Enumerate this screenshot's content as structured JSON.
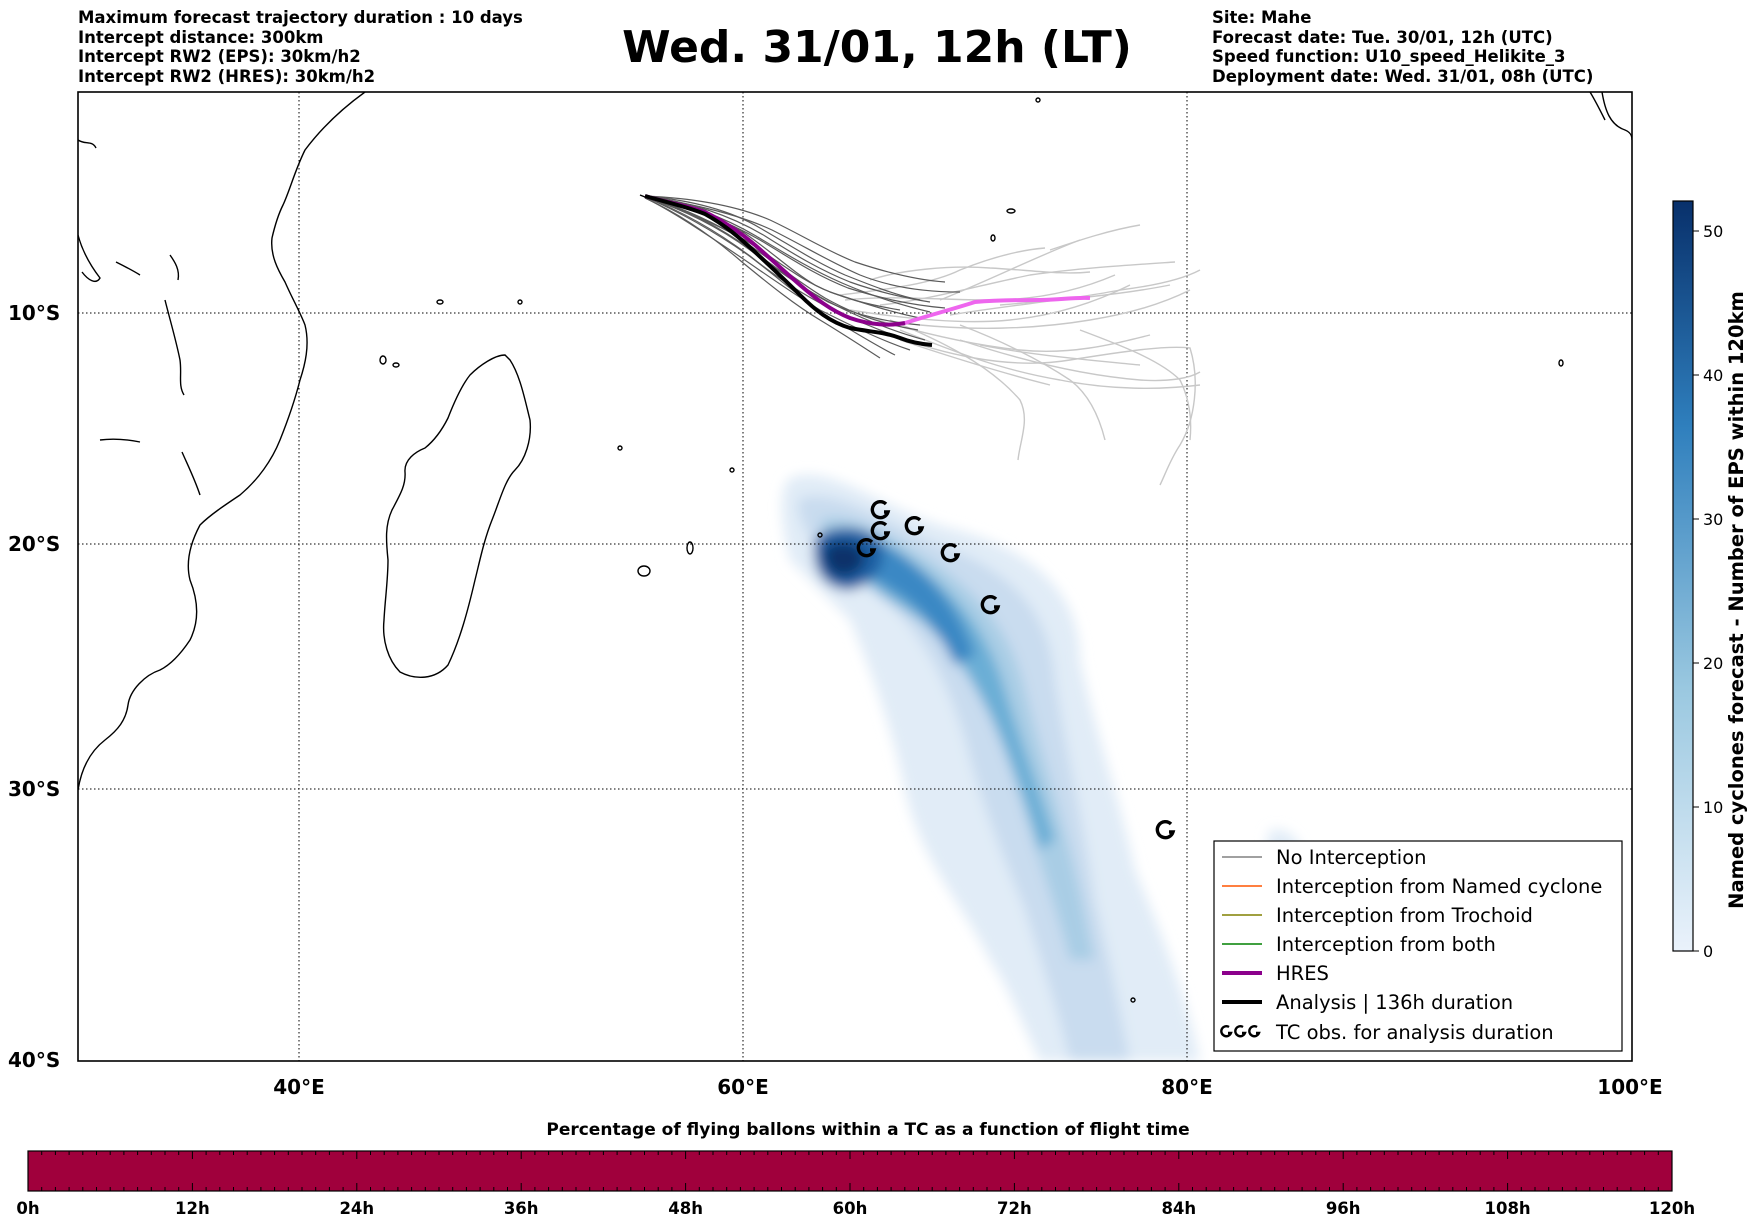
{
  "header": {
    "left_lines": [
      "Maximum forecast trajectory duration : 10 days",
      "Intercept distance: 300km",
      "Intercept RW2 (EPS):  30km/h2",
      "Intercept RW2 (HRES): 30km/h2"
    ],
    "title": "Wed. 31/01, 12h (LT)",
    "right_lines": [
      "Site: Mahe",
      "Forecast date: Tue. 30/01, 12h (UTC)",
      "Speed function: U10_speed_Helikite_3",
      "Deployment date: Wed. 31/01, 08h (UTC)"
    ]
  },
  "map": {
    "lat_labels": [
      "10°S",
      "20°S",
      "30°S",
      "40°S"
    ],
    "lon_labels": [
      "40°E",
      "60°E",
      "80°E",
      "100°E"
    ],
    "grid": true
  },
  "legend": {
    "items": [
      {
        "label": "No Interception",
        "color": "#808080"
      },
      {
        "label": "Interception from Named cyclone",
        "color": "#ff5500"
      },
      {
        "label": "Interception from Trochoid",
        "color": "#808000"
      },
      {
        "label": "Interception from both",
        "color": "#008000"
      },
      {
        "label": "HRES",
        "color": "#8b008b"
      },
      {
        "label": "Analysis | 136h duration",
        "color": "#000000"
      },
      {
        "label": "TC obs. for analysis duration",
        "color": "#000000",
        "icon": "cyclone-symbol-icon"
      }
    ]
  },
  "colorbar": {
    "label": "Named cyclones forecast - Number of EPS within 120km",
    "ticks": [
      "0",
      "10",
      "20",
      "30",
      "40",
      "50"
    ],
    "colors": [
      "#e3eef9",
      "#08306b"
    ]
  },
  "flight_bar": {
    "title": "Percentage of flying ballons within a TC as a function of flight time",
    "ticks": [
      "0h",
      "12h",
      "24h",
      "36h",
      "48h",
      "60h",
      "72h",
      "84h",
      "96h",
      "108h",
      "120h"
    ],
    "color": "#a0003c"
  },
  "colors": {
    "hres_forecast": "#ee66ee",
    "ensemble_dark": "#555555",
    "ensemble_light": "#c8c8c8"
  }
}
